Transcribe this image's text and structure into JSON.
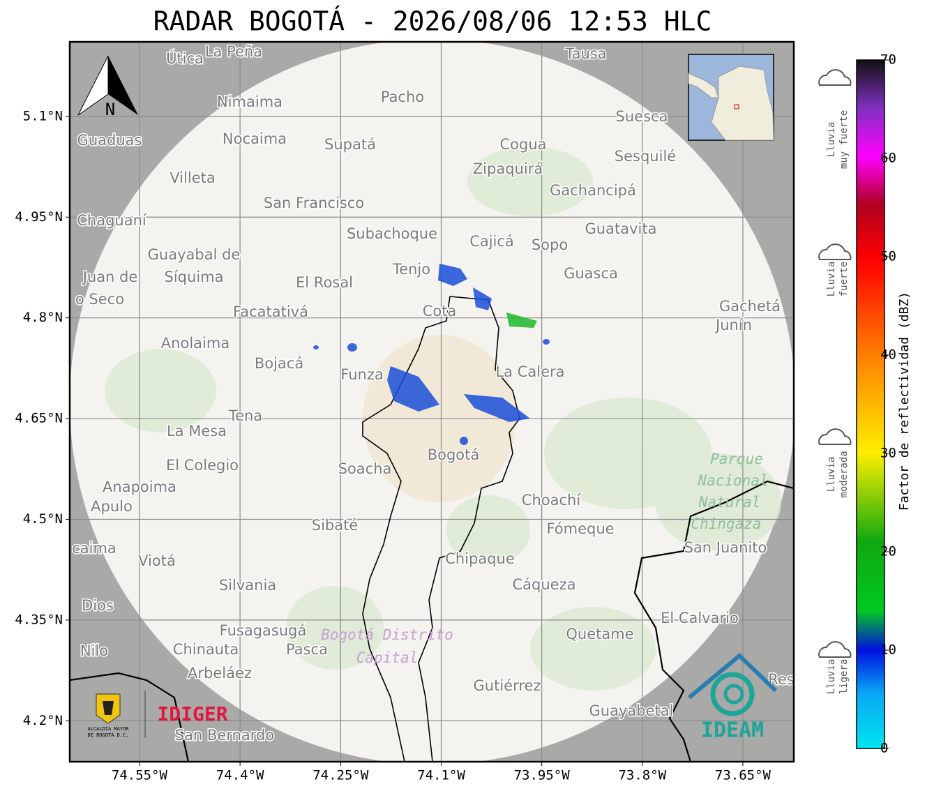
{
  "title": "RADAR BOGOTÁ - 2026/08/06 12:53 HLC",
  "map": {
    "xlim": [
      -74.654,
      -73.574
    ],
    "ylim": [
      4.139,
      5.211
    ],
    "grid": true,
    "xticks": [
      {
        "value": -74.55,
        "label": "74.55°W"
      },
      {
        "value": -74.4,
        "label": "74.4°W"
      },
      {
        "value": -74.25,
        "label": "74.25°W"
      },
      {
        "value": -74.1,
        "label": "74.1°W"
      },
      {
        "value": -73.95,
        "label": "73.95°W"
      },
      {
        "value": -73.8,
        "label": "73.8°W"
      },
      {
        "value": -73.65,
        "label": "73.65°W"
      }
    ],
    "yticks": [
      {
        "value": 5.1,
        "label": "5.1°N"
      },
      {
        "value": 4.95,
        "label": "4.95°N"
      },
      {
        "value": 4.8,
        "label": "4.8°N"
      },
      {
        "value": 4.65,
        "label": "4.65°N"
      },
      {
        "value": 4.5,
        "label": "4.5°N"
      },
      {
        "value": 4.35,
        "label": "4.35°N"
      },
      {
        "value": 4.2,
        "label": "4.2°N"
      }
    ],
    "north": "N",
    "places": [
      "Útica",
      "La Peña",
      "Tausa",
      "Pacho",
      "Nimaima",
      "Guaduas",
      "Nocaima",
      "Supatá",
      "Cogua",
      "Suesca",
      "Zipaquirá",
      "Sesquilé",
      "Villeta",
      "Gachancipá",
      "San Francisco",
      "Chaguaní",
      "Guatavita",
      "Subachoque",
      "Cajicá",
      "Sopo",
      "Guayabal de",
      "Síquima",
      "Juan de",
      "o Seco",
      "Tenjo",
      "El Rosal",
      "Guasca",
      "Cota",
      "Facatativá",
      "Gachetá",
      "Junín",
      "Anolaima",
      "Bojacá",
      "Funza",
      "La Calera",
      "Tena",
      "La Mesa",
      "El Colegio",
      "Soacha",
      "Bogotá",
      "Anapoima",
      "Apulo",
      "Choachí",
      "Sibaté",
      "Fómeque",
      "San Juanito",
      "caima",
      "Viotá",
      "Chipaque",
      "Silvania",
      "Cáqueza",
      "Dios",
      "El Calvario",
      "Fusagasugá",
      "Quetame",
      "Nilo",
      "Chinauta",
      "Pasca",
      "Arbeláez",
      "Gutiérrez",
      "Guayabetal",
      "San Bernardo",
      "Res"
    ],
    "park": [
      "Parque",
      "Nacional",
      "Natural",
      "Chingaza"
    ],
    "district": [
      "Bogotá Distrito",
      "Capital"
    ]
  },
  "logos": {
    "alcaldia": [
      "ALCALDÍA MAYOR",
      "DE BOGOTÁ D.C."
    ],
    "idiger": "IDIGER",
    "ideam": "IDEAM"
  },
  "colorbar": {
    "label": "Factor de reflectividad (dBZ)",
    "lim": [
      0,
      70
    ],
    "ticks": [
      0,
      10,
      20,
      30,
      40,
      50,
      60,
      70
    ]
  },
  "rain_levels": [
    [
      "Lluvia",
      "muy fuerte"
    ],
    [
      "Lluvia",
      "fuerte"
    ],
    [
      "Lluvia",
      "moderada"
    ],
    [
      "Lluvia",
      "ligera"
    ]
  ]
}
